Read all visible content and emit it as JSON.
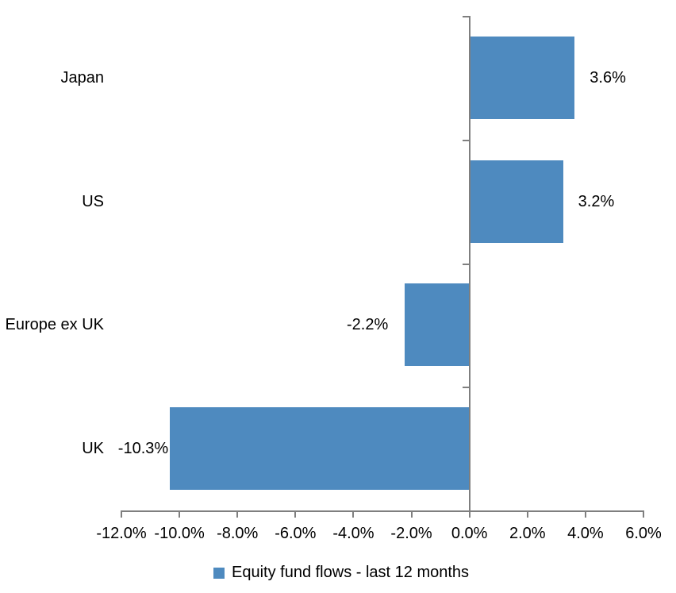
{
  "chart_data": {
    "type": "bar",
    "orientation": "horizontal",
    "title": "",
    "series_name": "Equity fund flows - last 12 months",
    "categories": [
      "Japan",
      "US",
      "Europe ex UK",
      "UK"
    ],
    "values": [
      3.6,
      3.2,
      -2.2,
      -10.3
    ],
    "data_labels": [
      "3.6%",
      "3.2%",
      "-2.2%",
      "-10.3%"
    ],
    "xlim": [
      -12,
      6
    ],
    "x_ticks": [
      -12,
      -10,
      -8,
      -6,
      -4,
      -2,
      0,
      2,
      4,
      6
    ],
    "x_tick_labels": [
      "-12.0%",
      "-10.0%",
      "-8.0%",
      "-6.0%",
      "-4.0%",
      "-2.0%",
      "0.0%",
      "2.0%",
      "4.0%",
      "6.0%"
    ],
    "grid": false,
    "legend_position": "bottom",
    "colors": {
      "bar": "#4E8ABF",
      "axis": "#7F7F7F",
      "text": "#000000",
      "background": "#FFFFFF"
    }
  }
}
